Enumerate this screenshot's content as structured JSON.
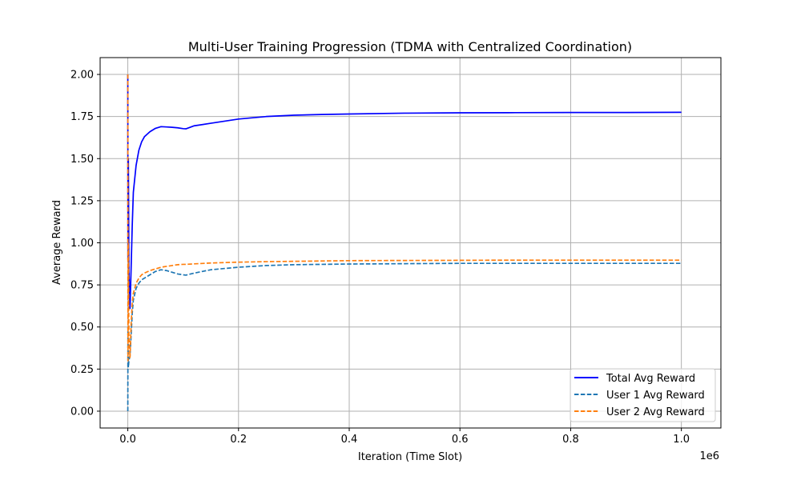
{
  "chart_data": {
    "type": "line",
    "title": "Multi-User Training Progression (TDMA with Centralized Coordination)",
    "xlabel": "Iteration (Time Slot)",
    "ylabel": "Average Reward",
    "x_offset_label": "1e6",
    "xlim": [
      -0.05,
      1.0714
    ],
    "ylim": [
      -0.1,
      2.1
    ],
    "xticks": [
      0.0,
      0.2,
      0.4,
      0.6,
      0.8,
      1.0
    ],
    "xtick_labels": [
      "0.0",
      "0.2",
      "0.4",
      "0.6",
      "0.8",
      "1.0"
    ],
    "yticks": [
      0.0,
      0.25,
      0.5,
      0.75,
      1.0,
      1.25,
      1.5,
      1.75,
      2.0
    ],
    "ytick_labels": [
      "0.00",
      "0.25",
      "0.50",
      "0.75",
      "1.00",
      "1.25",
      "1.50",
      "1.75",
      "2.00"
    ],
    "grid": true,
    "legend_position": "bottom-right",
    "series": [
      {
        "name": "Total Avg Reward",
        "color": "#0000ff",
        "dash": "solid",
        "x": [
          0.0,
          0.0003,
          0.001,
          0.002,
          0.004,
          0.006,
          0.008,
          0.01,
          0.015,
          0.02,
          0.025,
          0.03,
          0.04,
          0.05,
          0.06,
          0.07,
          0.08,
          0.09,
          0.1,
          0.105,
          0.12,
          0.15,
          0.2,
          0.25,
          0.3,
          0.35,
          0.4,
          0.5,
          0.6,
          0.7,
          0.8,
          0.9,
          1.0
        ],
        "y": [
          2.0,
          0.9,
          1.5,
          0.84,
          0.61,
          0.85,
          1.1,
          1.3,
          1.46,
          1.55,
          1.6,
          1.63,
          1.66,
          1.68,
          1.69,
          1.688,
          1.686,
          1.683,
          1.678,
          1.677,
          1.695,
          1.71,
          1.735,
          1.75,
          1.758,
          1.762,
          1.765,
          1.77,
          1.772,
          1.773,
          1.774,
          1.774,
          1.775
        ]
      },
      {
        "name": "User 1 Avg Reward",
        "color": "#1f77b4",
        "dash": "dashed",
        "x": [
          0.0,
          0.0003,
          0.001,
          0.002,
          0.004,
          0.006,
          0.008,
          0.01,
          0.015,
          0.02,
          0.025,
          0.03,
          0.04,
          0.05,
          0.06,
          0.07,
          0.08,
          0.09,
          0.1,
          0.105,
          0.12,
          0.15,
          0.2,
          0.25,
          0.3,
          0.35,
          0.4,
          0.5,
          0.6,
          0.7,
          0.8,
          0.9,
          1.0
        ],
        "y": [
          0.0,
          0.5,
          0.26,
          0.3,
          0.33,
          0.45,
          0.58,
          0.66,
          0.73,
          0.76,
          0.78,
          0.79,
          0.81,
          0.83,
          0.84,
          0.835,
          0.825,
          0.815,
          0.81,
          0.808,
          0.82,
          0.84,
          0.855,
          0.865,
          0.87,
          0.872,
          0.874,
          0.876,
          0.878,
          0.878,
          0.878,
          0.878,
          0.878
        ]
      },
      {
        "name": "User 2 Avg Reward",
        "color": "#ff7f0e",
        "dash": "dashed",
        "x": [
          0.0,
          0.0003,
          0.001,
          0.002,
          0.004,
          0.006,
          0.008,
          0.01,
          0.015,
          0.02,
          0.025,
          0.03,
          0.04,
          0.05,
          0.06,
          0.07,
          0.08,
          0.09,
          0.1,
          0.105,
          0.12,
          0.15,
          0.2,
          0.25,
          0.3,
          0.35,
          0.4,
          0.5,
          0.6,
          0.7,
          0.8,
          0.9,
          1.0
        ],
        "y": [
          2.0,
          0.3,
          1.0,
          0.44,
          0.32,
          0.52,
          0.64,
          0.7,
          0.76,
          0.79,
          0.81,
          0.82,
          0.835,
          0.845,
          0.855,
          0.86,
          0.865,
          0.87,
          0.872,
          0.872,
          0.875,
          0.88,
          0.885,
          0.888,
          0.89,
          0.892,
          0.894,
          0.895,
          0.896,
          0.897,
          0.897,
          0.897,
          0.897
        ]
      }
    ]
  }
}
